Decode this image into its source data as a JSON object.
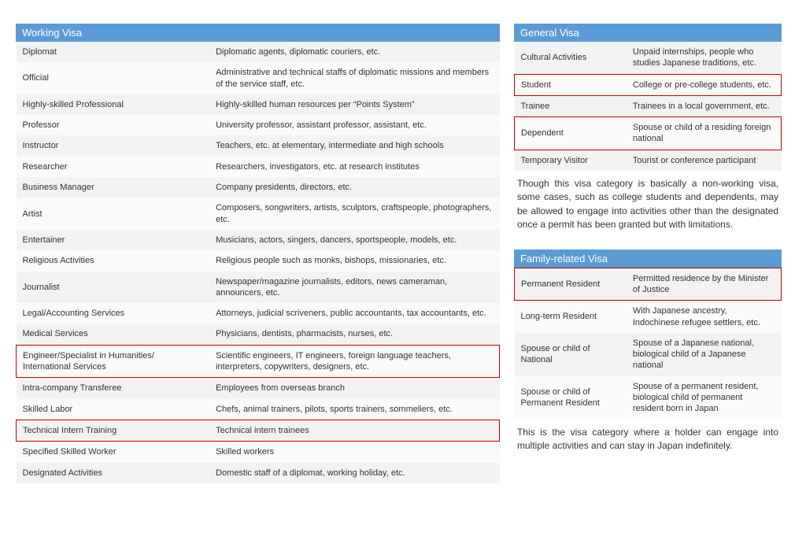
{
  "colors": {
    "header_bg": "#5b9bd5",
    "header_text": "#ffffff",
    "row_odd_bg": "#f2f2f2",
    "row_even_bg": "#fafafa",
    "highlight_border": "#c00000",
    "text": "#333333"
  },
  "working_visa": {
    "title": "Working Visa",
    "rows": [
      {
        "name": "Diplomat",
        "desc": "Diplomatic agents, diplomatic couriers, etc.",
        "hl": false
      },
      {
        "name": "Official",
        "desc": "Administrative and technical staffs of diplomatic missions and members of the service staff, etc.",
        "hl": false
      },
      {
        "name": "Highly-skilled Professional",
        "desc": "Highly-skilled human resources per “Points System”",
        "hl": false
      },
      {
        "name": "Professor",
        "desc": "University professor, assistant professor, assistant, etc.",
        "hl": false
      },
      {
        "name": "Instructor",
        "desc": "Teachers, etc. at elementary, intermediate and high schools",
        "hl": false
      },
      {
        "name": "Researcher",
        "desc": "Researchers, investigators, etc. at research institutes",
        "hl": false
      },
      {
        "name": "Business Manager",
        "desc": "Company presidents, directors, etc.",
        "hl": false
      },
      {
        "name": "Artist",
        "desc": "Composers, songwriters, artists, sculptors, craftspeople, photographers, etc.",
        "hl": false
      },
      {
        "name": "Entertainer",
        "desc": "Musicians, actors, singers, dancers, sportspeople, models, etc.",
        "hl": false
      },
      {
        "name": "Religious Activities",
        "desc": "Religious people such as monks, bishops, missionaries, etc.",
        "hl": false
      },
      {
        "name": "Journalist",
        "desc": "Newspaper/magazine journalists, editors, news cameraman, announcers, etc.",
        "hl": false
      },
      {
        "name": "Legal/Accounting Services",
        "desc": "Attorneys, judicial scriveners, public accountants, tax accountants, etc.",
        "hl": false
      },
      {
        "name": "Medical Services",
        "desc": "Physicians, dentists, pharmacists, nurses, etc.",
        "hl": false
      },
      {
        "name": "Engineer/Specialist in Humanities/\nInternational Services",
        "desc": "Scientific engineers, IT engineers, foreign language teachers, interpreters, copywriters, designers, etc.",
        "hl": true
      },
      {
        "name": "Intra-company Transferee",
        "desc": "Employees from overseas branch",
        "hl": false
      },
      {
        "name": "Skilled Labor",
        "desc": "Chefs, animal trainers, pilots, sports trainers, sommeliers, etc.",
        "hl": false
      },
      {
        "name": "Technical Intern Training",
        "desc": "Technical intern trainees",
        "hl": true
      },
      {
        "name": "Specified Skilled Worker",
        "desc": "Skilled workers",
        "hl": false
      },
      {
        "name": "Designated Activities",
        "desc": "Domestic staff of a diplomat, working holiday, etc.",
        "hl": false
      }
    ]
  },
  "general_visa": {
    "title": "General Visa",
    "rows": [
      {
        "name": "Cultural Activities",
        "desc": "Unpaid internships, people who studies Japanese traditions, etc.",
        "hl": false
      },
      {
        "name": "Student",
        "desc": "College or pre-college students, etc.",
        "hl": true
      },
      {
        "name": "Trainee",
        "desc": "Trainees in a local government, etc.",
        "hl": false
      },
      {
        "name": "Dependent",
        "desc": "Spouse or child of a residing foreign national",
        "hl": true
      },
      {
        "name": "Temporary Visitor",
        "desc": "Tourist or conference participant",
        "hl": false
      }
    ],
    "note": "Though this visa category is basically a non-working visa, some cases, such as college students and dependents, may be allowed to engage into activities other than the designated once a permit has been granted but with limitations."
  },
  "family_visa": {
    "title": "Family-related Visa",
    "rows": [
      {
        "name": "Permanent Resident",
        "desc": "Permitted residence by the Minister of Justice",
        "hl": true
      },
      {
        "name": "Long-term Resident",
        "desc": "With Japanese ancestry, Indochinese refugee settlers, etc.",
        "hl": false
      },
      {
        "name": "Spouse or child of National",
        "desc": "Spouse of a Japanese national, biological child of a Japanese national",
        "hl": false
      },
      {
        "name": "Spouse or child of Permanent Resident",
        "desc": "Spouse of a permanent resident, biological child of permanent resident born in Japan",
        "hl": false
      }
    ],
    "note": "This is the visa category where a holder can engage into multiple activities and can stay in Japan indefinitely."
  }
}
